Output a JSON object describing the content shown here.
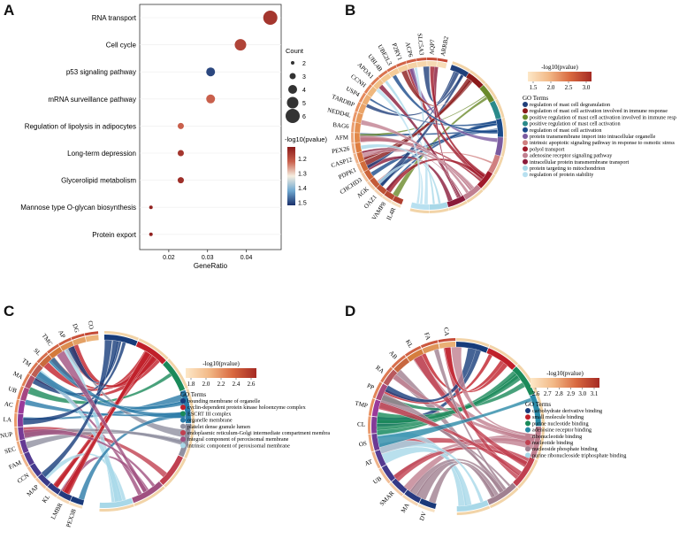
{
  "panels": {
    "a": "A",
    "b": "B",
    "c": "C",
    "d": "D"
  },
  "colors": {
    "low": "#1a2f6b",
    "high": "#8b1a1a",
    "chord_palette_b": [
      "#1f3f7a",
      "#8b1a1a",
      "#6a8a2a",
      "#2a8a8a",
      "#1a4a8a",
      "#7a5aa0",
      "#d08080",
      "#a01a2a",
      "#c08090",
      "#8a1a3a",
      "#a8d8e8",
      "#b8e0f0"
    ],
    "chord_palette_c": [
      "#173c7a",
      "#c0202a",
      "#1a8a5a",
      "#2a7aa8",
      "#9090a0",
      "#c04050",
      "#a05080",
      "#a8d8e8"
    ],
    "chord_palette_d": [
      "#173c7a",
      "#c0202a",
      "#1a8a5a",
      "#2a8aa8",
      "#c08090",
      "#c04050",
      "#a08090",
      "#a8d8e8"
    ]
  },
  "chart_data": [
    {
      "type": "scatter",
      "panel": "A",
      "xlabel": "GeneRatio",
      "x_ticks": [
        "0.02",
        "0.03",
        "0.04"
      ],
      "xlim": [
        0.0125,
        0.049
      ],
      "categories": [
        "RNA transport",
        "Cell cycle",
        "p53 signaling pathway",
        "mRNA surveillance pathway",
        "Regulation of lipolysis in adipocytes",
        "Long-term depression",
        "Glycerolipid metabolism",
        "Mannose type O-glycan biosynthesis",
        "Protein export"
      ],
      "x": [
        0.0462,
        0.0385,
        0.0308,
        0.0308,
        0.0231,
        0.0231,
        0.0231,
        0.0154,
        0.0154
      ],
      "count": [
        6,
        5,
        4,
        4,
        3,
        3,
        3,
        2,
        2
      ],
      "pvalue_log": [
        1.16,
        1.18,
        1.5,
        1.22,
        1.22,
        1.16,
        1.15,
        1.13,
        1.13
      ],
      "legend_size_title": "Count",
      "legend_size_values": [
        "2",
        "3",
        "4",
        "5",
        "6"
      ],
      "legend_color_title": "-log10(pvalue)",
      "legend_color_ticks": [
        "1.2",
        "1.3",
        "1.4",
        "1.5"
      ],
      "color_range": [
        1.12,
        1.52
      ]
    },
    {
      "type": "chord",
      "panel": "B",
      "legend_title": "-log10(pvalue)",
      "legend_ticks": [
        "1.5",
        "2.0",
        "2.5",
        "3.0"
      ],
      "terms_title": "GO Terms",
      "terms": [
        "regulation of mast cell degranulation",
        "regulation of mast cell activation involved in immune response",
        "positive regulation of mast cell activation involved in immune resp",
        "positive regulation of mast cell activation",
        "regulation of mast cell activation",
        "protein transmembrane import into intracellular organelle",
        "intrinsic apoptotic signaling pathway in response to osmotic stress",
        "polyol transport",
        "adenosine receptor signaling pathway",
        "intracellular protein transmembrane transport",
        "protein targeting to mitochondrion",
        "regulation of protein stability"
      ],
      "genes": [
        "IL4R",
        "VAMP8",
        "OAZ1",
        "AGK",
        "CHCHD3",
        "PDPK1",
        "CASP12",
        "PEX26",
        "AFM",
        "BAG6",
        "NEDD4L",
        "TARDBP",
        "USP4",
        "CCNH",
        "APOA1",
        "UBL4B",
        "UBE2L3",
        "P2RY1",
        "ACP6",
        "SLC5A3",
        "AQP7",
        "ARRB2"
      ]
    },
    {
      "type": "chord",
      "panel": "C",
      "legend_title": "-log10(pvalue)",
      "legend_ticks": [
        "1.8",
        "2.0",
        "2.2",
        "2.4",
        "2.6"
      ],
      "terms_title": "GO Terms",
      "terms": [
        "bounding membrane of organelle",
        "cyclin-dependent protein kinase holoenzyme complex",
        "ESCRT III complex",
        "organelle membrane",
        "platelet dense granule lumen",
        "endoplasmic reticulum-Golgi intermediate compartment membra",
        "integral component of peroxisomal membrane",
        "intrinsic component of peroxisomal membrane"
      ],
      "genes": [
        "PEX3B",
        "LMBR",
        "KL",
        "MAP",
        "CCN",
        "FAM",
        "SEC",
        "NUP",
        "LA",
        "AC",
        "UB",
        "MA",
        "TM",
        "SL",
        "TMC",
        "AP",
        "DG",
        "CO"
      ]
    },
    {
      "type": "chord",
      "panel": "D",
      "legend_title": "-log10(pvalue)",
      "legend_ticks": [
        "2.6",
        "2.7",
        "2.8",
        "2.9",
        "3.0",
        "3.1"
      ],
      "terms_title": "GO Terms",
      "terms": [
        "carbohydrate derivative binding",
        "small molecule binding",
        "purine nucleotide binding",
        "adenosine receptor binding",
        "ribonucleotide binding",
        "nucleotide binding",
        "nucleoside phosphate binding",
        "purine ribonucleoside triphosphate binding"
      ],
      "genes": [
        "DV",
        "MA",
        "SMAR",
        "UB",
        "AT",
        "OS",
        "CL",
        "TMP",
        "PP",
        "RA",
        "AB",
        "KL",
        "FA",
        "CA"
      ]
    }
  ]
}
